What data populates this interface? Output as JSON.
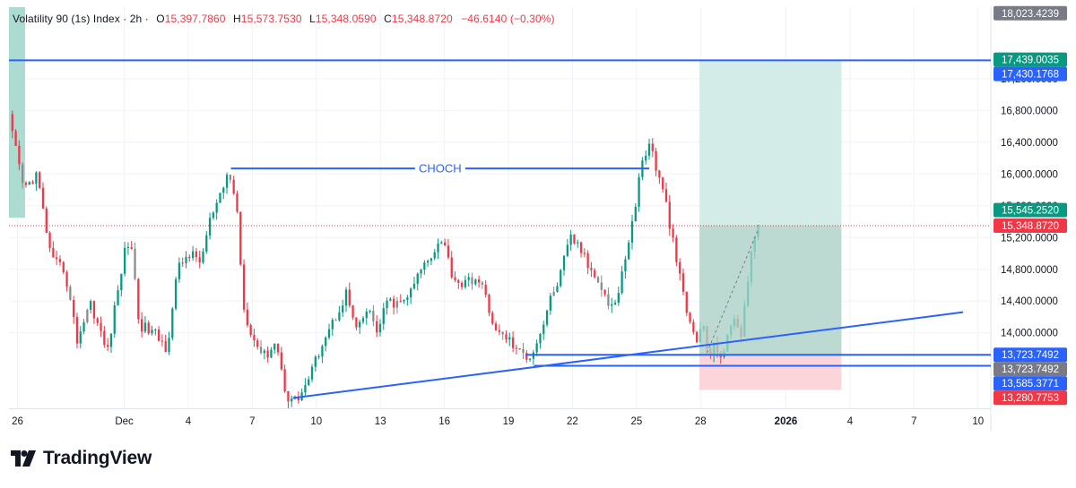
{
  "header": {
    "symbol": "Volatility 90 (1s) Index",
    "interval": "2h",
    "open_label": "O",
    "open": "15,397.7860",
    "high_label": "H",
    "high": "15,573.7530",
    "low_label": "L",
    "low": "15,348.0590",
    "close_label": "C",
    "close": "15,348.8720",
    "change": "−46.6140 (−0.30%)"
  },
  "brand": {
    "name": "TradingView",
    "logo_icon": "tradingview-logo-icon"
  },
  "chart_data": {
    "type": "candlestick",
    "title": "",
    "ylim": [
      13050,
      18100
    ],
    "xlim": [
      -0.4,
      45.6
    ],
    "x_unit": "days from Nov 26",
    "y_ticks": [
      {
        "value": 14000,
        "label": "14,000.0000"
      },
      {
        "value": 14400,
        "label": "14,400.0000"
      },
      {
        "value": 14800,
        "label": "14,800.0000"
      },
      {
        "value": 15200,
        "label": "15,200.0000"
      },
      {
        "value": 15600,
        "label": "15,600.0000"
      },
      {
        "value": 16000,
        "label": "16,000.0000"
      },
      {
        "value": 16400,
        "label": "16,400.0000"
      },
      {
        "value": 16800,
        "label": "16,800.0000"
      },
      {
        "value": 17200,
        "label": "17,200.0000"
      }
    ],
    "x_ticks": [
      {
        "x": 0,
        "label": "26",
        "bold": false
      },
      {
        "x": 5,
        "label": "Dec",
        "bold": false
      },
      {
        "x": 8,
        "label": "4",
        "bold": false
      },
      {
        "x": 11,
        "label": "7",
        "bold": false
      },
      {
        "x": 14,
        "label": "10",
        "bold": false
      },
      {
        "x": 17,
        "label": "13",
        "bold": false
      },
      {
        "x": 20,
        "label": "16",
        "bold": false
      },
      {
        "x": 23,
        "label": "19",
        "bold": false
      },
      {
        "x": 26,
        "label": "22",
        "bold": false
      },
      {
        "x": 29,
        "label": "25",
        "bold": false
      },
      {
        "x": 32,
        "label": "28",
        "bold": false
      },
      {
        "x": 36,
        "label": "2026",
        "bold": true
      },
      {
        "x": 39,
        "label": "4",
        "bold": false
      },
      {
        "x": 42,
        "label": "7",
        "bold": false
      },
      {
        "x": 45,
        "label": "10",
        "bold": false
      }
    ],
    "path_points": [
      [
        -0.4,
        16700
      ],
      [
        0.3,
        15800
      ],
      [
        0.9,
        16000
      ],
      [
        1.6,
        14900
      ],
      [
        2.2,
        14800
      ],
      [
        2.8,
        13900
      ],
      [
        3.4,
        14400
      ],
      [
        4.2,
        13750
      ],
      [
        5.0,
        15000
      ],
      [
        5.3,
        15200
      ],
      [
        5.7,
        14100
      ],
      [
        6.4,
        14000
      ],
      [
        7.0,
        13800
      ],
      [
        7.5,
        14800
      ],
      [
        8.0,
        15000
      ],
      [
        8.6,
        14900
      ],
      [
        9.0,
        15400
      ],
      [
        9.5,
        15700
      ],
      [
        9.9,
        16050
      ],
      [
        10.3,
        15500
      ],
      [
        10.6,
        14300
      ],
      [
        11.1,
        13900
      ],
      [
        11.6,
        13700
      ],
      [
        12.1,
        13900
      ],
      [
        12.6,
        13200
      ],
      [
        13.1,
        13150
      ],
      [
        13.7,
        13450
      ],
      [
        14.3,
        13900
      ],
      [
        14.9,
        14200
      ],
      [
        15.4,
        14500
      ],
      [
        15.9,
        14000
      ],
      [
        16.4,
        14300
      ],
      [
        16.9,
        14000
      ],
      [
        17.3,
        14400
      ],
      [
        17.9,
        14350
      ],
      [
        18.4,
        14500
      ],
      [
        18.9,
        14800
      ],
      [
        19.4,
        15000
      ],
      [
        19.9,
        15200
      ],
      [
        20.4,
        14700
      ],
      [
        20.9,
        14600
      ],
      [
        21.4,
        14700
      ],
      [
        21.9,
        14500
      ],
      [
        22.4,
        14000
      ],
      [
        22.9,
        13950
      ],
      [
        23.5,
        13750
      ],
      [
        24.0,
        13700
      ],
      [
        24.5,
        14000
      ],
      [
        25.0,
        14450
      ],
      [
        25.4,
        14700
      ],
      [
        25.9,
        15200
      ],
      [
        26.3,
        15100
      ],
      [
        26.8,
        14800
      ],
      [
        27.2,
        14700
      ],
      [
        27.7,
        14350
      ],
      [
        28.1,
        14400
      ],
      [
        28.5,
        15000
      ],
      [
        28.9,
        15500
      ],
      [
        29.2,
        16100
      ],
      [
        29.6,
        16400
      ],
      [
        30.0,
        16000
      ],
      [
        30.4,
        15600
      ],
      [
        30.8,
        15000
      ],
      [
        31.1,
        14600
      ],
      [
        31.4,
        14200
      ],
      [
        31.8,
        13900
      ],
      [
        32.1,
        14100
      ],
      [
        32.4,
        13700
      ],
      [
        32.7,
        13850
      ],
      [
        33.0,
        13700
      ],
      [
        33.3,
        13950
      ],
      [
        33.6,
        14200
      ],
      [
        33.9,
        14000
      ],
      [
        34.2,
        14600
      ],
      [
        34.5,
        15200
      ],
      [
        34.7,
        15348.872
      ]
    ],
    "candle_count": 220,
    "series": [
      {
        "values": "path_points"
      }
    ],
    "lines": [
      {
        "type": "horizontal",
        "y": 17430.1768,
        "from_x": -0.4,
        "to_x": 46.5
      },
      {
        "type": "segment",
        "label": "CHOCH",
        "y": 16070,
        "from_x": 10.0,
        "to_x": 29.6
      },
      {
        "type": "segment",
        "from": [
          12.9,
          13180
        ],
        "to": [
          44.3,
          14260
        ]
      },
      {
        "type": "segment",
        "y": 13723.7492,
        "from_x": 23.8,
        "to_x": 46.5
      },
      {
        "type": "segment",
        "y": 13585.3771,
        "from_x": 24.2,
        "to_x": 46.5
      }
    ],
    "position": {
      "entry": 15348.872,
      "target": 17439.0035,
      "stop": 13280.7753,
      "from_x": 31.95,
      "to_x": 38.6
    },
    "price_labels": [
      {
        "value": 18023.4239,
        "label": "18,023.4239",
        "color": "#787b86"
      },
      {
        "value": 17439.0035,
        "label": "17,439.0035",
        "color": "#089981"
      },
      {
        "value": 17430.1768,
        "label": "17,430.1768",
        "color": "#2962ff"
      },
      {
        "value": 15545.252,
        "label": "15,545.2520",
        "color": "#089981"
      },
      {
        "value": 15348.872,
        "label": "15,348.8720",
        "color": "#f23645"
      },
      {
        "value": 13723.7492,
        "label": "13,723.7492",
        "color": "#2962ff"
      },
      {
        "value": 13723.7492,
        "label": "13,723.7492",
        "color": "#787b86"
      },
      {
        "value": 13585.3771,
        "label": "13,585.3771",
        "color": "#2962ff"
      },
      {
        "value": 13280.7753,
        "label": "13,280.7753",
        "color": "#f23645"
      }
    ],
    "colors": {
      "up": "#089981",
      "down": "#f23645",
      "neutral": "#8b8b8b",
      "line": "#2962ff",
      "target_zone": "#d3ece8",
      "profit_zone": "#a7d9cf",
      "stop_zone": "#fcd5da",
      "left_zone": "#a7d9cf",
      "grid": "#f0f3fa"
    },
    "grid": true,
    "legend": "top-left"
  }
}
